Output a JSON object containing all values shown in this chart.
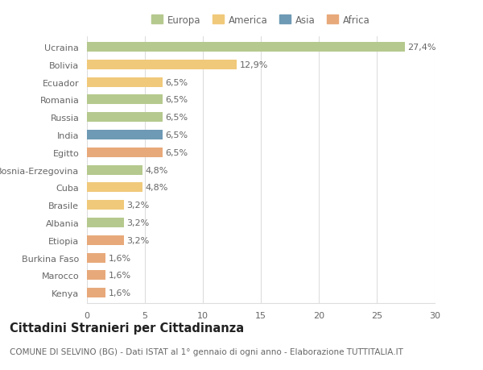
{
  "countries": [
    "Ucraina",
    "Bolivia",
    "Ecuador",
    "Romania",
    "Russia",
    "India",
    "Egitto",
    "Bosnia-Erzegovina",
    "Cuba",
    "Brasile",
    "Albania",
    "Etiopia",
    "Burkina Faso",
    "Marocco",
    "Kenya"
  ],
  "values": [
    27.4,
    12.9,
    6.5,
    6.5,
    6.5,
    6.5,
    6.5,
    4.8,
    4.8,
    3.2,
    3.2,
    3.2,
    1.6,
    1.6,
    1.6
  ],
  "labels": [
    "27,4%",
    "12,9%",
    "6,5%",
    "6,5%",
    "6,5%",
    "6,5%",
    "6,5%",
    "4,8%",
    "4,8%",
    "3,2%",
    "3,2%",
    "3,2%",
    "1,6%",
    "1,6%",
    "1,6%"
  ],
  "continents": [
    "Europa",
    "America",
    "America",
    "Europa",
    "Europa",
    "Asia",
    "Africa",
    "Europa",
    "America",
    "America",
    "Europa",
    "Africa",
    "Africa",
    "Africa",
    "Africa"
  ],
  "continent_colors": {
    "Europa": "#b5c98e",
    "America": "#f0c97a",
    "Asia": "#6e9ab5",
    "Africa": "#e8a97a"
  },
  "legend_order": [
    "Europa",
    "America",
    "Asia",
    "Africa"
  ],
  "title": "Cittadini Stranieri per Cittadinanza",
  "subtitle": "COMUNE DI SELVINO (BG) - Dati ISTAT al 1° gennaio di ogni anno - Elaborazione TUTTITALIA.IT",
  "xlim": [
    0,
    30
  ],
  "xticks": [
    0,
    5,
    10,
    15,
    20,
    25,
    30
  ],
  "bar_height": 0.55,
  "background_color": "#ffffff",
  "grid_color": "#dddddd",
  "text_color": "#666666",
  "label_fontsize": 8,
  "tick_fontsize": 8,
  "title_fontsize": 10.5,
  "subtitle_fontsize": 7.5,
  "legend_fontsize": 8.5
}
